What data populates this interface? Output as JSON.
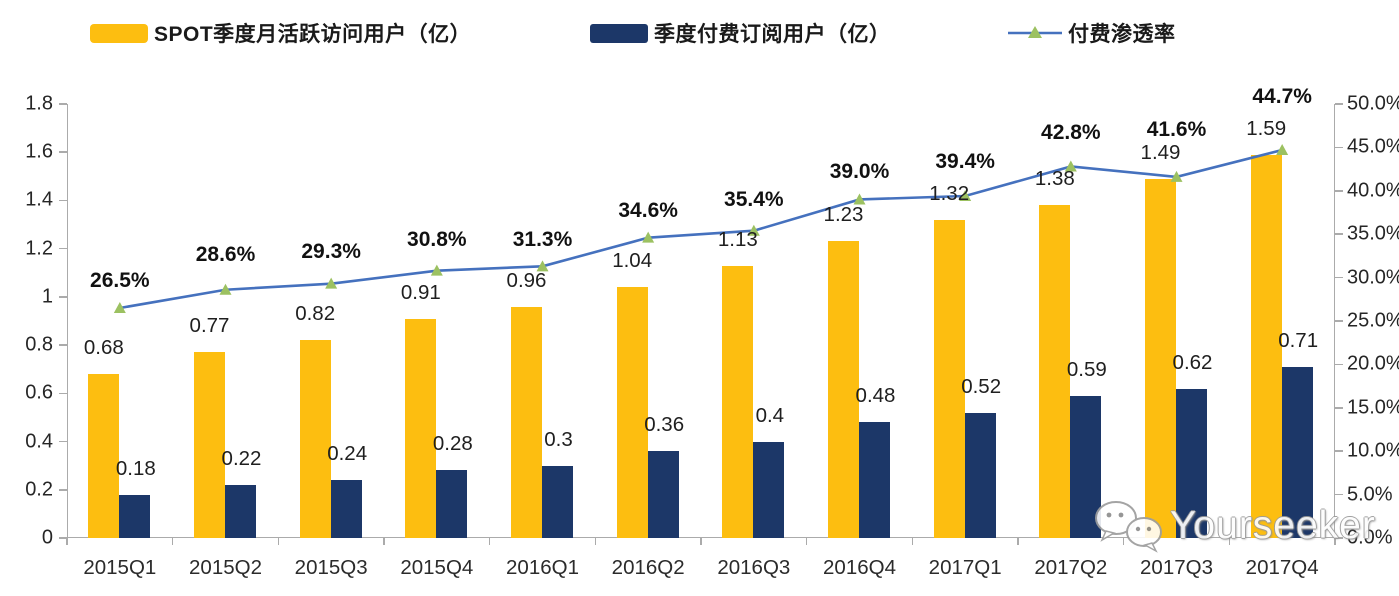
{
  "legend": {
    "items": [
      {
        "label": "SPOT季度月活跃访问用户（亿）",
        "color": "#FDBE10",
        "type": "bar"
      },
      {
        "label": "季度付费订阅用户（亿）",
        "color": "#1C3768",
        "type": "bar"
      },
      {
        "label": "付费渗透率",
        "color": "#4571BE",
        "marker_color": "#9CC161",
        "type": "line"
      }
    ]
  },
  "watermark": {
    "text": "Yourseeker",
    "icon": "wechat-icon"
  },
  "chart_data": {
    "type": "bar",
    "subtype": "bar+line dual axis",
    "categories": [
      "2015Q1",
      "2015Q2",
      "2015Q3",
      "2015Q4",
      "2016Q1",
      "2016Q2",
      "2016Q3",
      "2016Q4",
      "2017Q1",
      "2017Q2",
      "2017Q3",
      "2017Q4"
    ],
    "series": [
      {
        "name": "SPOT季度月活跃访问用户（亿）",
        "type": "bar",
        "axis": "left",
        "color": "#FDBE10",
        "values": [
          0.68,
          0.77,
          0.82,
          0.91,
          0.96,
          1.04,
          1.13,
          1.23,
          1.32,
          1.38,
          1.49,
          1.59
        ],
        "labels": [
          "0.68",
          "0.77",
          "0.82",
          "0.91",
          "0.96",
          "1.04",
          "1.13",
          "1.23",
          "1.32",
          "1.38",
          "1.49",
          "1.59"
        ]
      },
      {
        "name": "季度付费订阅用户（亿）",
        "type": "bar",
        "axis": "left",
        "color": "#1C3768",
        "values": [
          0.18,
          0.22,
          0.24,
          0.28,
          0.3,
          0.36,
          0.4,
          0.48,
          0.52,
          0.59,
          0.62,
          0.71
        ],
        "labels": [
          "0.18",
          "0.22",
          "0.24",
          "0.28",
          "0.3",
          "0.36",
          "0.4",
          "0.48",
          "0.52",
          "0.59",
          "0.62",
          "0.71"
        ]
      },
      {
        "name": "付费渗透率",
        "type": "line",
        "axis": "right",
        "color": "#4571BE",
        "marker": "triangle",
        "marker_color": "#9CC161",
        "values": [
          26.5,
          28.6,
          29.3,
          30.8,
          31.3,
          34.6,
          35.4,
          39.0,
          39.4,
          42.8,
          41.6,
          44.7
        ],
        "labels": [
          "26.5%",
          "28.6%",
          "29.3%",
          "30.8%",
          "31.3%",
          "34.6%",
          "35.4%",
          "39.0%",
          "39.4%",
          "42.8%",
          "41.6%",
          "44.7%"
        ]
      }
    ],
    "left_axis": {
      "min": 0,
      "max": 1.8,
      "step": 0.2,
      "ticks": [
        "0",
        "0.2",
        "0.4",
        "0.6",
        "0.8",
        "1",
        "1.2",
        "1.4",
        "1.6",
        "1.8"
      ]
    },
    "right_axis": {
      "min": 0,
      "max": 50,
      "step": 5,
      "ticks": [
        "0.0%",
        "5.0%",
        "10.0%",
        "15.0%",
        "20.0%",
        "25.0%",
        "30.0%",
        "35.0%",
        "40.0%",
        "45.0%",
        "50.0%"
      ]
    },
    "grid": false,
    "legend_position": "top",
    "title": "",
    "xlabel": "",
    "ylabel": ""
  }
}
